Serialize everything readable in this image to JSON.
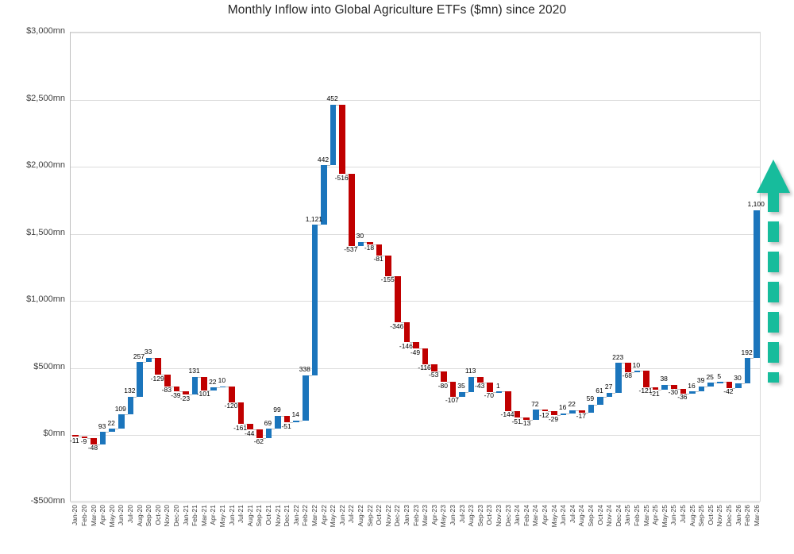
{
  "title": "Monthly Inflow into Global Agriculture ETFs ($mn) since 2020",
  "chart_data": {
    "type": "bar",
    "subtype": "waterfall",
    "title": "Monthly Inflow into Global Agriculture ETFs ($mn) since 2020",
    "categories": [
      "Jan-20",
      "Feb-20",
      "Mar-20",
      "Apr-20",
      "May-20",
      "Jun-20",
      "Jul-20",
      "Aug-20",
      "Sep-20",
      "Oct-20",
      "Nov-20",
      "Dec-20",
      "Jan-21",
      "Feb-21",
      "Mar-21",
      "Apr-21",
      "May-21",
      "Jun-21",
      "Jul-21",
      "Aug-21",
      "Sep-21",
      "Oct-21",
      "Nov-21",
      "Dec-21",
      "Jan-22",
      "Feb-22",
      "Mar-22",
      "Apr-22",
      "May-22",
      "Jun-22",
      "Jul-22",
      "Aug-22",
      "Sep-22",
      "Oct-22",
      "Nov-22",
      "Dec-22",
      "Jan-23",
      "Feb-23",
      "Mar-23",
      "Apr-23",
      "May-23",
      "Jun-23",
      "Jul-23",
      "Aug-23",
      "Sep-23",
      "Oct-23",
      "Nov-23",
      "Dec-23",
      "Jan-24",
      "Feb-24",
      "Mar-24",
      "Apr-24",
      "May-24",
      "Jun-24",
      "Jul-24",
      "Aug-24",
      "Sep-24",
      "Oct-24",
      "Nov-24",
      "Dec-24",
      "Jan-25",
      "Feb-25",
      "Mar-25",
      "Apr-25",
      "May-25",
      "Jun-25",
      "Jul-25",
      "Aug-25",
      "Sep-25",
      "Oct-25",
      "Nov-25",
      "Dec-25",
      "Jan-26",
      "Feb-26",
      "Mar-26"
    ],
    "values": [
      -11,
      -9,
      -48,
      93,
      22,
      109,
      132,
      257,
      33,
      -129,
      -83,
      -39,
      -23,
      131,
      -101,
      22,
      10,
      -120,
      -161,
      -44,
      -62,
      69,
      99,
      -51,
      14,
      338,
      1121,
      442,
      452,
      -516,
      -537,
      30,
      -18,
      -81,
      -155,
      -346,
      -146,
      -49,
      -116,
      -53,
      -80,
      -107,
      35,
      113,
      -43,
      -70,
      1,
      -144,
      -51,
      -13,
      72,
      -12,
      -29,
      16,
      22,
      -17,
      59,
      61,
      27,
      223,
      -68,
      10,
      -121,
      -21,
      38,
      -30,
      -36,
      16,
      39,
      25,
      5,
      -42,
      30,
      192,
      1100
    ],
    "xlabel": "",
    "ylabel": "",
    "ylim": [
      -500,
      3000
    ],
    "ytick_step": 500,
    "ytick_labels": [
      "$3,000mn",
      "$2,500mn",
      "$2,000mn",
      "$1,500mn",
      "$1,000mn",
      "$500mn",
      "$0mn",
      "-$500mn"
    ],
    "grid": "horizontal",
    "legend": "none",
    "colors": {
      "positive": "#1B75BC",
      "negative": "#C00000",
      "connector": "#BFBFBF",
      "gridline": "#DCDCDC",
      "label_text": "#000000",
      "tick_text": "#404040",
      "arrow": "#17BC9C"
    },
    "annotations": [
      {
        "name": "up-trend-arrow",
        "style": "dashed block arrow pointing up",
        "position": "right of Mar-26 bar",
        "color": "#17BC9C"
      }
    ]
  }
}
